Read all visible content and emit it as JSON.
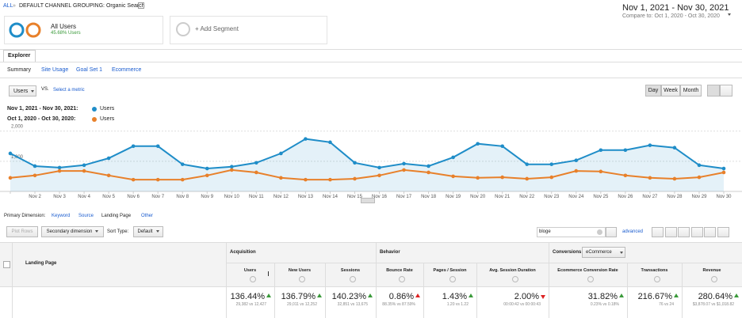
{
  "header": {
    "all": "ALL",
    "separator": "»",
    "breadcrumb": "DEFAULT CHANNEL GROUPING: Organic Search",
    "date_range": "Nov 1, 2021 - Nov 30, 2021",
    "compare": "Compare to: Oct 1, 2020 - Oct 30, 2020"
  },
  "segments": {
    "name": "All Users",
    "detail": "45.68% Users",
    "add": "+ Add Segment"
  },
  "tabs": {
    "explorer": "Explorer",
    "sub": [
      "Summary",
      "Site Usage",
      "Goal Set 1",
      "Ecommerce"
    ]
  },
  "controls": {
    "metric": "Users",
    "vs": "VS.",
    "select": "Select a metric",
    "periods": [
      "Day",
      "Week",
      "Month"
    ]
  },
  "chart_data": {
    "type": "line",
    "categories": [
      null,
      "Nov 2",
      "Nov 3",
      "Nov 4",
      "Nov 5",
      "Nov 6",
      "Nov 7",
      "Nov 8",
      "Nov 9",
      "Nov 10",
      "Nov 11",
      "Nov 12",
      "Nov 13",
      "Nov 14",
      "Nov 15",
      "Nov 16",
      "Nov 17",
      "Nov 18",
      "Nov 19",
      "Nov 20",
      "Nov 21",
      "Nov 22",
      "Nov 23",
      "Nov 24",
      "Nov 25",
      "Nov 26",
      "Nov 27",
      "Nov 28",
      "Nov 29",
      "Nov 30"
    ],
    "series": [
      {
        "name": "Users",
        "period": "Nov 1, 2021 - Nov 30, 2021:",
        "color": "#1f8dc8",
        "values": [
          1260,
          840,
          790,
          870,
          1100,
          1500,
          1500,
          900,
          760,
          820,
          950,
          1260,
          1740,
          1630,
          950,
          790,
          920,
          840,
          1130,
          1580,
          1500,
          900,
          900,
          1030,
          1370,
          1370,
          1530,
          1450,
          870,
          760
        ]
      },
      {
        "name": "Users",
        "period": "Oct 1, 2020 - Oct 30, 2020:",
        "color": "#e8802a",
        "values": [
          450,
          530,
          680,
          680,
          530,
          390,
          390,
          390,
          530,
          710,
          630,
          450,
          390,
          390,
          420,
          530,
          710,
          630,
          500,
          450,
          470,
          420,
          470,
          680,
          660,
          530,
          450,
          420,
          470,
          630
        ]
      }
    ],
    "ylim": [
      0,
      2150
    ],
    "yticks": [
      {
        "value": 1000,
        "label": "1,000"
      },
      {
        "value": 2000,
        "label": "2,000"
      }
    ],
    "grid": true
  },
  "dimensions": {
    "label": "Primary Dimension:",
    "options": [
      "Keyword",
      "Source",
      "Landing Page",
      "Other"
    ]
  },
  "toolbar": {
    "plot_rows": "Plot Rows",
    "secondary": "Secondary dimension",
    "sort_label": "Sort Type:",
    "sort": "Default",
    "search": "bloge",
    "advanced": "advanced"
  },
  "table": {
    "landing_page": "Landing Page",
    "groups": [
      "Acquisition",
      "Behavior",
      "Conversions"
    ],
    "conversion_select": "eCommerce",
    "columns": [
      "Users",
      "New Users",
      "Sessions",
      "Bounce Rate",
      "Pages / Session",
      "Avg. Session Duration",
      "Ecommerce Conversion Rate",
      "Transactions",
      "Revenue"
    ],
    "totals": [
      {
        "change": "136.44%",
        "compare": "29,382 vs 12,427"
      },
      {
        "change": "136.79%",
        "compare": "29,011 vs 12,252"
      },
      {
        "change": "140.23%",
        "compare": "32,851 vs 13,675"
      },
      {
        "change": "0.86%",
        "compare": "88.35% vs 87.59%"
      },
      {
        "change": "1.43%",
        "compare": "1.20 vs 1.22"
      },
      {
        "change": "2.00%",
        "compare": "00:00:42 vs 00:00:43"
      },
      {
        "change": "31.82%",
        "compare": "0.23% vs 0.18%"
      },
      {
        "change": "216.67%",
        "compare": "76 vs 24"
      },
      {
        "change": "280.64%",
        "compare": "$3,878.07 vs $1,018.82"
      }
    ]
  }
}
